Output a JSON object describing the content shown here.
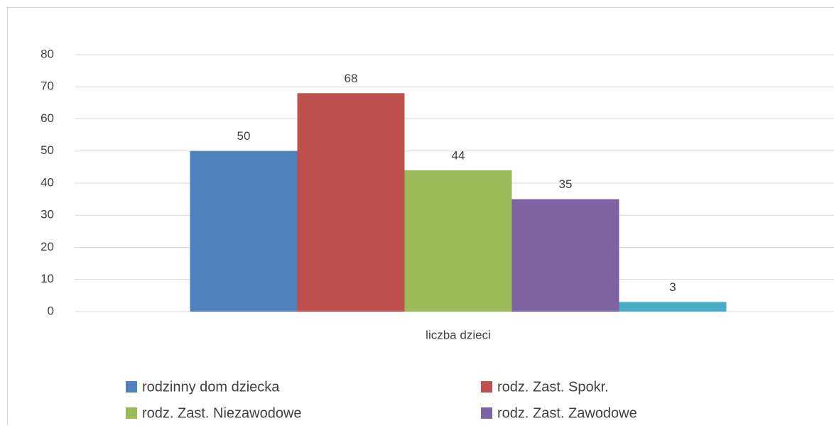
{
  "chart_data": {
    "type": "bar",
    "categories": [
      "liczba dzieci"
    ],
    "series": [
      {
        "name": "rodzinny dom dziecka",
        "color": "#4f81bd",
        "values": [
          50
        ]
      },
      {
        "name": "rodz. Zast. Spokr.",
        "color": "#c0504d",
        "values": [
          68
        ]
      },
      {
        "name": "rodz. Zast. Niezawodowe",
        "color": "#9bbb59",
        "values": [
          44
        ]
      },
      {
        "name": "rodz. Zast. Zawodowe",
        "color": "#8064a2",
        "values": [
          35
        ]
      },
      {
        "color": "#4bacc6",
        "values": [
          3
        ]
      }
    ],
    "ylim": [
      0,
      80
    ],
    "yticks": [
      0,
      10,
      20,
      30,
      40,
      50,
      60,
      70,
      80
    ],
    "grid": true,
    "legend": "bottom"
  }
}
